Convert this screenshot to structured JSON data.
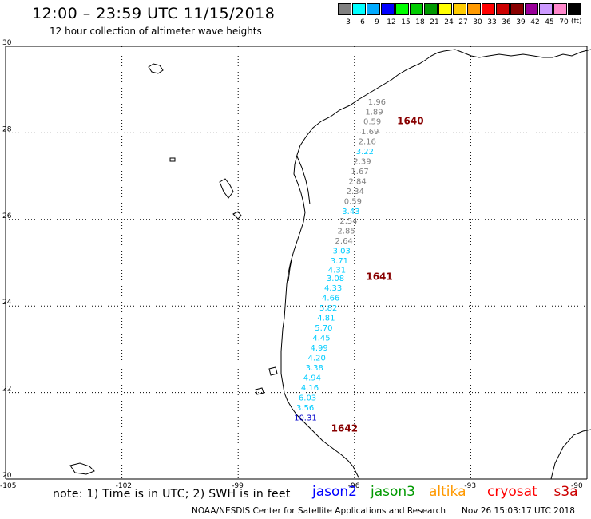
{
  "header": {
    "title": "12:00 – 23:59 UTC 11/15/2018",
    "subtitle": "12 hour collection of altimeter wave heights"
  },
  "colorbar": {
    "unit": "(ft)",
    "bins": [
      {
        "color": "#808080",
        "label": "3"
      },
      {
        "color": "#00ffff",
        "label": "6"
      },
      {
        "color": "#00aaff",
        "label": "9"
      },
      {
        "color": "#0000ff",
        "label": "12"
      },
      {
        "color": "#00ff00",
        "label": "15"
      },
      {
        "color": "#00cc00",
        "label": "18"
      },
      {
        "color": "#009900",
        "label": "21"
      },
      {
        "color": "#ffff00",
        "label": "24"
      },
      {
        "color": "#ffcc00",
        "label": "27"
      },
      {
        "color": "#ff9900",
        "label": "30"
      },
      {
        "color": "#ff0000",
        "label": "33"
      },
      {
        "color": "#cc0000",
        "label": "36"
      },
      {
        "color": "#880000",
        "label": "39"
      },
      {
        "color": "#990099",
        "label": "42"
      },
      {
        "color": "#cc99ff",
        "label": "45"
      },
      {
        "color": "#ff88cc",
        "label": "70"
      },
      {
        "color": "#000000",
        "label": ""
      }
    ]
  },
  "axes": {
    "lat_labels": [
      "30",
      "28",
      "26",
      "24",
      "22",
      "20"
    ],
    "lon_labels": [
      "-105",
      "-102",
      "-99",
      "-96",
      "-93",
      "-90"
    ]
  },
  "track_times": [
    {
      "label": "1640",
      "lat": 28.2,
      "lon": -94.9
    },
    {
      "label": "1641",
      "lat": 24.6,
      "lon": -95.7
    },
    {
      "label": "1642",
      "lat": 21.1,
      "lon": -96.6
    }
  ],
  "wave_heights": [
    {
      "value": "1.96",
      "lat": 28.65,
      "lon": -95.65,
      "color": "#808080"
    },
    {
      "value": "1.89",
      "lat": 28.42,
      "lon": -95.72,
      "color": "#808080"
    },
    {
      "value": "0.59",
      "lat": 28.2,
      "lon": -95.77,
      "color": "#808080"
    },
    {
      "value": "1.69",
      "lat": 27.97,
      "lon": -95.83,
      "color": "#808080"
    },
    {
      "value": "2.16",
      "lat": 27.74,
      "lon": -95.9,
      "color": "#808080"
    },
    {
      "value": "3.22",
      "lat": 27.51,
      "lon": -95.96,
      "color": "#00ccff"
    },
    {
      "value": "2.39",
      "lat": 27.28,
      "lon": -96.03,
      "color": "#808080"
    },
    {
      "value": "1.67",
      "lat": 27.05,
      "lon": -96.09,
      "color": "#808080"
    },
    {
      "value": "2.84",
      "lat": 26.82,
      "lon": -96.15,
      "color": "#808080"
    },
    {
      "value": "2.34",
      "lat": 26.59,
      "lon": -96.21,
      "color": "#808080"
    },
    {
      "value": "0.59",
      "lat": 26.36,
      "lon": -96.27,
      "color": "#808080"
    },
    {
      "value": "3.43",
      "lat": 26.13,
      "lon": -96.32,
      "color": "#00ccff"
    },
    {
      "value": "2.54",
      "lat": 25.9,
      "lon": -96.38,
      "color": "#808080"
    },
    {
      "value": "2.85",
      "lat": 25.67,
      "lon": -96.44,
      "color": "#808080"
    },
    {
      "value": "2.64",
      "lat": 25.44,
      "lon": -96.5,
      "color": "#808080"
    },
    {
      "value": "3.03",
      "lat": 25.21,
      "lon": -96.56,
      "color": "#00ccff"
    },
    {
      "value": "3.71",
      "lat": 24.98,
      "lon": -96.62,
      "color": "#00ccff"
    },
    {
      "value": "4.31",
      "lat": 24.77,
      "lon": -96.68,
      "color": "#00ccff"
    },
    {
      "value": "3.08",
      "lat": 24.58,
      "lon": -96.72,
      "color": "#00ccff"
    },
    {
      "value": "4.33",
      "lat": 24.35,
      "lon": -96.78,
      "color": "#00ccff"
    },
    {
      "value": "4.66",
      "lat": 24.12,
      "lon": -96.84,
      "color": "#00ccff"
    },
    {
      "value": "5.82",
      "lat": 23.89,
      "lon": -96.9,
      "color": "#00ccff"
    },
    {
      "value": "4.81",
      "lat": 23.66,
      "lon": -96.96,
      "color": "#00ccff"
    },
    {
      "value": "5.70",
      "lat": 23.43,
      "lon": -97.02,
      "color": "#00ccff"
    },
    {
      "value": "4.45",
      "lat": 23.2,
      "lon": -97.08,
      "color": "#00ccff"
    },
    {
      "value": "4.99",
      "lat": 22.97,
      "lon": -97.14,
      "color": "#00ccff"
    },
    {
      "value": "4.20",
      "lat": 22.74,
      "lon": -97.2,
      "color": "#00ccff"
    },
    {
      "value": "3.38",
      "lat": 22.51,
      "lon": -97.26,
      "color": "#00ccff"
    },
    {
      "value": "4.94",
      "lat": 22.28,
      "lon": -97.32,
      "color": "#00ccff"
    },
    {
      "value": "4.16",
      "lat": 22.05,
      "lon": -97.38,
      "color": "#00ccff"
    },
    {
      "value": "6.03",
      "lat": 21.82,
      "lon": -97.44,
      "color": "#00ccff"
    },
    {
      "value": "3.56",
      "lat": 21.59,
      "lon": -97.5,
      "color": "#00ccff"
    },
    {
      "value": "10.31",
      "lat": 21.36,
      "lon": -97.56,
      "color": "#0000cc"
    }
  ],
  "footer": {
    "note": "note: 1) Time is in UTC; 2) SWH is in feet",
    "satellites": [
      {
        "name": "jason2",
        "color": "#0000ff"
      },
      {
        "name": "jason3",
        "color": "#009900"
      },
      {
        "name": "altika",
        "color": "#ff9900"
      },
      {
        "name": "cryosat",
        "color": "#ff0000"
      },
      {
        "name": "s3a",
        "color": "#cc0000"
      }
    ],
    "credit": "NOAA/NESDIS Center for Satellite Applications and Research",
    "timestamp": "Nov 26 15:03:17 UTC 2018"
  }
}
